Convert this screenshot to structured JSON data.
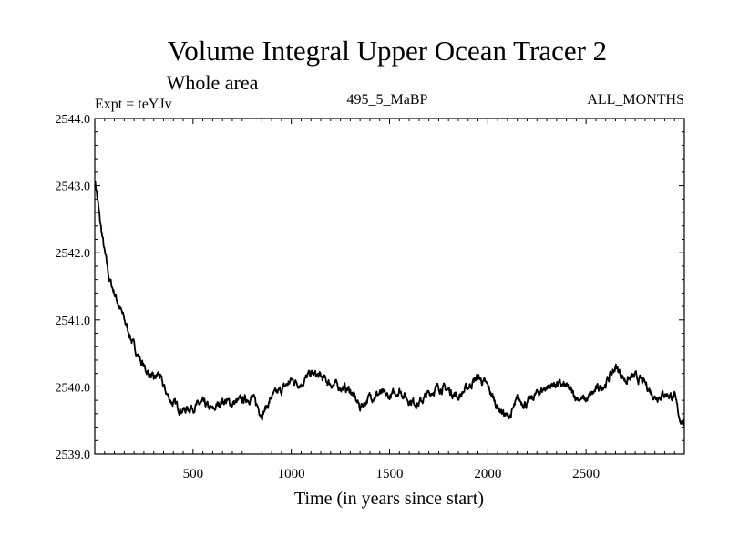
{
  "chart_data": {
    "type": "line",
    "title": "Volume Integral Upper Ocean Tracer 2",
    "subtitle": "Whole area",
    "expt_label": "Expt = teYJv",
    "period_label": "495_5_MaBP",
    "months_label": "ALL_MONTHS",
    "xlabel": "Time (in years since start)",
    "ylabel": "",
    "xlim": [
      0,
      3000
    ],
    "ylim": [
      2539.0,
      2544.0
    ],
    "x_ticks": [
      500,
      1000,
      1500,
      2000,
      2500
    ],
    "x_tick_labels": [
      "500",
      "1000",
      "1500",
      "2000",
      "2500"
    ],
    "y_ticks": [
      2539.0,
      2540.0,
      2541.0,
      2542.0,
      2543.0,
      2544.0
    ],
    "y_tick_labels": [
      "2539.0",
      "2540.0",
      "2541.0",
      "2542.0",
      "2543.0",
      "2544.0"
    ],
    "grid": false,
    "series": [
      {
        "name": "Volume Integral Upper Ocean Tracer 2",
        "x": [
          0,
          10,
          25,
          50,
          75,
          100,
          125,
          150,
          175,
          200,
          225,
          250,
          275,
          300,
          325,
          350,
          375,
          400,
          425,
          450,
          500,
          550,
          600,
          650,
          700,
          750,
          800,
          850,
          875,
          900,
          950,
          1000,
          1050,
          1100,
          1150,
          1200,
          1250,
          1300,
          1350,
          1400,
          1450,
          1500,
          1550,
          1600,
          1650,
          1700,
          1750,
          1800,
          1850,
          1900,
          1950,
          2000,
          2050,
          2100,
          2120,
          2150,
          2200,
          2250,
          2300,
          2350,
          2400,
          2450,
          2500,
          2550,
          2600,
          2650,
          2700,
          2750,
          2800,
          2850,
          2900,
          2950,
          2975,
          3000
        ],
        "values": [
          2543.1,
          2542.9,
          2542.5,
          2542.0,
          2541.6,
          2541.4,
          2541.2,
          2541.0,
          2540.8,
          2540.6,
          2540.45,
          2540.3,
          2540.2,
          2540.1,
          2540.2,
          2540.0,
          2539.85,
          2539.75,
          2539.7,
          2539.65,
          2539.7,
          2539.75,
          2539.65,
          2539.8,
          2539.75,
          2539.8,
          2539.85,
          2539.6,
          2539.7,
          2539.85,
          2539.95,
          2540.1,
          2540.05,
          2540.2,
          2540.15,
          2540.05,
          2540.0,
          2539.95,
          2539.7,
          2539.85,
          2539.9,
          2539.85,
          2539.95,
          2539.8,
          2539.75,
          2539.9,
          2540.0,
          2539.95,
          2539.85,
          2540.0,
          2540.15,
          2540.0,
          2539.7,
          2539.55,
          2539.6,
          2539.8,
          2539.75,
          2539.9,
          2540.0,
          2540.05,
          2540.0,
          2539.85,
          2539.8,
          2539.95,
          2540.05,
          2540.3,
          2540.1,
          2540.15,
          2540.05,
          2539.85,
          2539.9,
          2539.85,
          2539.55,
          2539.45
        ]
      }
    ]
  }
}
